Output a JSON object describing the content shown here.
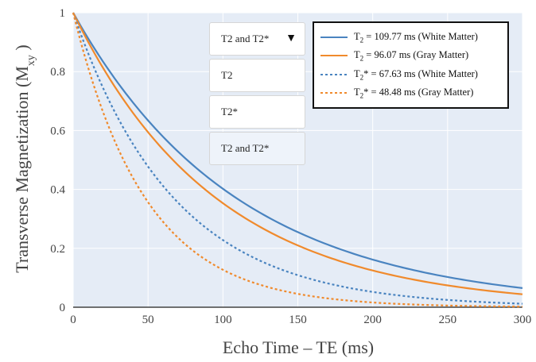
{
  "chart_data": {
    "type": "line",
    "xlabel": "Echo Time – TE (ms)",
    "ylabel_main": "Transverse Magnetization (M",
    "ylabel_sub": "xy",
    "ylabel_end": " )",
    "xlim": [
      0,
      300
    ],
    "ylim": [
      0,
      1
    ],
    "xticks": [
      0,
      50,
      100,
      150,
      200,
      250,
      300
    ],
    "yticks": [
      0,
      0.2,
      0.4,
      0.6,
      0.8,
      1
    ],
    "xtick_labels": [
      "0",
      "50",
      "100",
      "150",
      "200",
      "250",
      "300"
    ],
    "ytick_labels": [
      "0",
      "0.2",
      "0.4",
      "0.6",
      "0.8",
      "1"
    ],
    "grid": true,
    "legend_position": "top-right",
    "series": [
      {
        "name": "T2 = 109.77 ms (White Matter)",
        "label_pre": "T",
        "label_sub": "2",
        "label_post": " = 109.77 ms (White Matter)",
        "T": 109.77,
        "color": "#4a84c0",
        "dash": "solid",
        "x": [
          0,
          25,
          50,
          75,
          100,
          125,
          150,
          175,
          200,
          225,
          250,
          275,
          300
        ],
        "y": [
          1,
          0.796,
          0.634,
          0.505,
          0.402,
          0.32,
          0.255,
          0.203,
          0.162,
          0.129,
          0.103,
          0.082,
          0.065
        ]
      },
      {
        "name": "T2 = 96.07 ms (Gray Matter)",
        "label_pre": "T",
        "label_sub": "2",
        "label_post": " = 96.07 ms (Gray Matter)",
        "T": 96.07,
        "color": "#f08a2c",
        "dash": "solid",
        "x": [
          0,
          25,
          50,
          75,
          100,
          125,
          150,
          175,
          200,
          225,
          250,
          275,
          300
        ],
        "y": [
          1,
          0.771,
          0.594,
          0.458,
          0.353,
          0.272,
          0.21,
          0.162,
          0.125,
          0.096,
          0.074,
          0.057,
          0.044
        ]
      },
      {
        "name": "T2* = 67.63 ms (White Matter)",
        "label_pre": "T",
        "label_sub": "2",
        "label_post": "* = 67.63 ms (White Matter)",
        "T": 67.63,
        "color": "#4a84c0",
        "dash": "dotted",
        "x": [
          0,
          25,
          50,
          75,
          100,
          125,
          150,
          175,
          200,
          225,
          250,
          275,
          300
        ],
        "y": [
          1,
          0.691,
          0.477,
          0.33,
          0.228,
          0.158,
          0.109,
          0.075,
          0.052,
          0.036,
          0.025,
          0.017,
          0.012
        ]
      },
      {
        "name": "T2* = 48.48 ms (Gray Matter)",
        "label_pre": "T",
        "label_sub": "2",
        "label_post": "* = 48.48 ms (Gray Matter)",
        "T": 48.48,
        "color": "#f08a2c",
        "dash": "dotted",
        "x": [
          0,
          25,
          50,
          75,
          100,
          125,
          150,
          175,
          200,
          225,
          250,
          275,
          300
        ],
        "y": [
          1,
          0.597,
          0.357,
          0.213,
          0.127,
          0.076,
          0.045,
          0.027,
          0.016,
          0.01,
          0.006,
          0.003,
          0.002
        ]
      }
    ]
  },
  "dropdown": {
    "selected_label": "T2 and T2*",
    "arrow_icon": "triangle-down-icon",
    "options": [
      "T2",
      "T2*",
      "T2 and T2*"
    ],
    "selected_index": 2
  },
  "colors": {
    "plot_background": "#e5ecf6",
    "grid": "#ffffff",
    "white_matter": "#4a84c0",
    "gray_matter": "#f08a2c"
  }
}
